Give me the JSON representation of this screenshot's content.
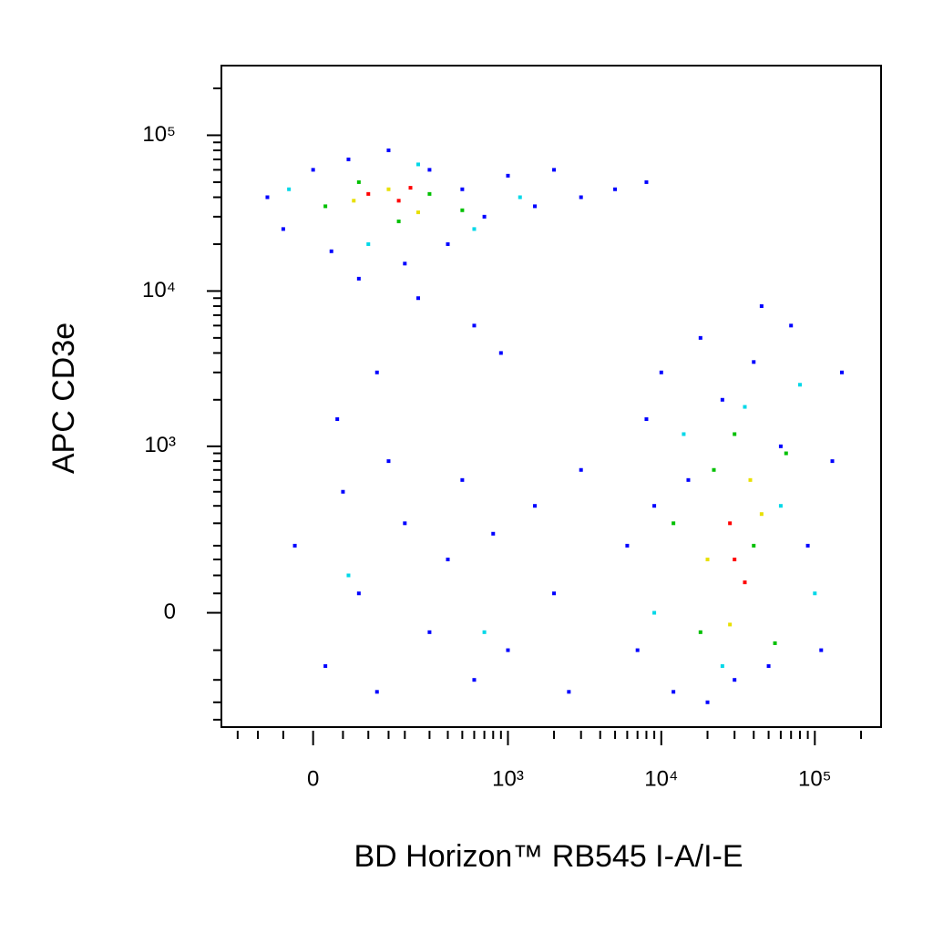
{
  "chart_data": {
    "type": "scatter",
    "xlabel": "BD Horizon™ RB545 I-A/I-E",
    "ylabel": "APC CD3e",
    "xscale": "biexponential",
    "yscale": "biexponential",
    "xlim": [
      -200,
      270000
    ],
    "ylim": [
      -450,
      280000
    ],
    "xticks": [
      0,
      {
        "value": 1000,
        "label": "10³"
      },
      {
        "value": 10000,
        "label": "10⁴"
      },
      {
        "value": 100000,
        "label": "10⁵"
      }
    ],
    "yticks": [
      0,
      {
        "value": 1000,
        "label": "10³"
      },
      {
        "value": 10000,
        "label": "10⁴"
      },
      {
        "value": 100000,
        "label": "10⁵"
      }
    ],
    "xminor": [
      -150,
      -100,
      -50,
      50,
      100,
      150,
      200,
      300,
      400,
      500,
      600,
      700,
      800,
      900,
      2000,
      3000,
      4000,
      5000,
      6000,
      7000,
      8000,
      9000,
      20000,
      30000,
      40000,
      50000,
      60000,
      70000,
      80000,
      90000,
      200000
    ],
    "yminor": [
      -400,
      -300,
      -200,
      -100,
      50,
      100,
      150,
      200,
      300,
      400,
      500,
      600,
      700,
      800,
      900,
      2000,
      3000,
      4000,
      5000,
      6000,
      7000,
      8000,
      9000,
      20000,
      30000,
      40000,
      50000,
      60000,
      70000,
      80000,
      90000,
      200000
    ],
    "series": [
      {
        "color": "#0000ff",
        "x": [
          -80,
          -50,
          0,
          30,
          60,
          80,
          150,
          200,
          300,
          400,
          500,
          700,
          1000,
          1500,
          2000,
          3000,
          5000,
          8000,
          250,
          600,
          120,
          900,
          -30,
          20,
          50,
          80,
          120,
          150,
          200,
          300,
          400,
          500,
          600,
          800,
          1000,
          1500,
          2000,
          2500,
          3000,
          40,
          6000,
          7000,
          8000,
          10000,
          12000,
          15000,
          18000,
          20000,
          25000,
          30000,
          40000,
          50000,
          60000,
          70000,
          90000,
          110000,
          130000,
          150000,
          9000,
          45000
        ],
        "y": [
          40000,
          25000,
          60000,
          18000,
          70000,
          12000,
          80000,
          15000,
          60000,
          20000,
          45000,
          30000,
          55000,
          35000,
          60000,
          40000,
          45000,
          50000,
          9000,
          6000,
          3000,
          4000,
          200,
          -150,
          500,
          50,
          -250,
          800,
          300,
          -50,
          150,
          600,
          -200,
          250,
          -100,
          400,
          50,
          -250,
          700,
          1500,
          200,
          -100,
          1500,
          3000,
          -250,
          600,
          5000,
          -300,
          2000,
          -200,
          3500,
          -150,
          1000,
          6000,
          200,
          -100,
          800,
          3000,
          400,
          8000
        ]
      },
      {
        "color": "#00d8e8",
        "x": [
          -40,
          100,
          250,
          600,
          1200,
          60,
          700,
          9000,
          14000,
          25000,
          60000,
          80000,
          100000,
          35000
        ],
        "y": [
          45000,
          20000,
          65000,
          25000,
          40000,
          100,
          -50,
          0,
          1200,
          -150,
          400,
          2500,
          50,
          1800
        ]
      },
      {
        "color": "#00c000",
        "x": [
          20,
          80,
          180,
          300,
          500,
          12000,
          18000,
          22000,
          40000,
          55000,
          65000,
          30000
        ],
        "y": [
          35000,
          50000,
          28000,
          42000,
          33000,
          300,
          -50,
          700,
          200,
          -80,
          900,
          1200
        ]
      },
      {
        "color": "#e8e000",
        "x": [
          70,
          150,
          250,
          20000,
          28000,
          45000,
          38000
        ],
        "y": [
          38000,
          45000,
          32000,
          150,
          -30,
          350,
          600
        ]
      },
      {
        "color": "#ff0000",
        "x": [
          100,
          180,
          220,
          30000,
          35000,
          28000
        ],
        "y": [
          42000,
          38000,
          46000,
          150,
          80,
          300
        ]
      }
    ]
  }
}
